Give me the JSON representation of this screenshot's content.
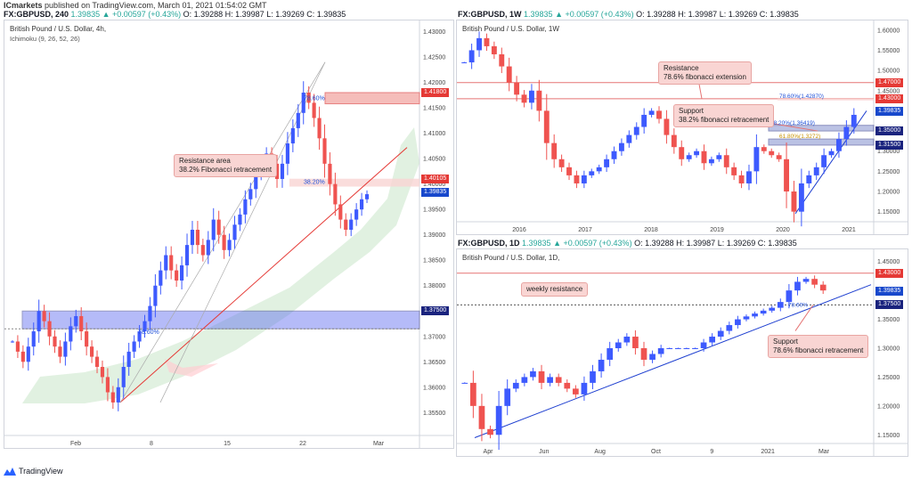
{
  "header": {
    "publisher": "ICmarkets",
    "published_text": "published on TradingView.com, March 01, 2021 01:54:02 GMT"
  },
  "panels": {
    "left": {
      "symbol": "FX:GBPUSD, 240",
      "price": "1.39835",
      "change": "▲ +0.00597 (+0.43%)",
      "o": "O: 1.39288",
      "h": "H: 1.39987",
      "l": "L: 1.39269",
      "c": "C: 1.39835",
      "title": "British Pound / U.S. Dollar, 4h,",
      "indicator": "Ichimoku (9, 26, 52, 26)",
      "annotation_line1": "Resistance area",
      "annotation_line2": "38.2% Fibonacci retracement",
      "fib_786": "78.60%",
      "fib_382": "38.20%",
      "fib_786_low": "78.60%",
      "tags": {
        "t1": "1.41800",
        "t2": "1.40105",
        "t3": "1.39835",
        "t4": "1.37500"
      }
    },
    "topright": {
      "symbol": "FX:GBPUSD, 1W",
      "price": "1.39835",
      "change": "▲ +0.00597 (+0.43%)",
      "o": "O: 1.39288",
      "h": "H: 1.39987",
      "l": "L: 1.39269",
      "c": "C: 1.39835",
      "title": "British Pound / U.S. Dollar, 1W",
      "ann_res_line1": "Resistance",
      "ann_res_line2": "78.6% fibonacci extension",
      "ann_sup_line1": "Support",
      "ann_sup_line2": "38.2% fibonacci retracement",
      "fib_786": "78.60%(1.42870)",
      "fib_382": "38.20%(1.36419)",
      "fib_618": "61.80%(1.3272)",
      "tags": {
        "t1": "1.47000",
        "t2": "1.43000",
        "t3": "1.39835",
        "t4": "1.35000",
        "t5": "1.31500"
      }
    },
    "bottomright": {
      "symbol": "FX:GBPUSD, 1D",
      "price": "1.39835",
      "change": "▲ +0.00597 (+0.43%)",
      "o": "O: 1.39288",
      "h": "H: 1.39987",
      "l": "L: 1.39269",
      "c": "C: 1.39835",
      "title": "British Pound / U.S. Dollar, 1D,",
      "ann_res": "weekly resistance",
      "ann_sup_line1": "Support",
      "ann_sup_line2": "78.6% fibonacci retracement",
      "fib_label": "78.60%",
      "tags": {
        "t1": "1.43000",
        "t2": "1.39835",
        "t3": "1.37500"
      }
    }
  },
  "chart_data": [
    {
      "type": "candlestick",
      "title": "British Pound / U.S. Dollar, 4h,",
      "x_ticks": [
        "Feb",
        "8",
        "15",
        "22",
        "Mar"
      ],
      "y_ticks": [
        1.43,
        1.425,
        1.42,
        1.415,
        1.41,
        1.405,
        1.4,
        1.395,
        1.39,
        1.385,
        1.38,
        1.375,
        1.37,
        1.365,
        1.36,
        1.355
      ],
      "y_tick_labels": [
        "1.43000",
        "1.42500",
        "1.42000",
        "1.41500",
        "1.41000",
        "1.40500",
        "1.40000",
        "1.39500",
        "1.39000",
        "1.38500",
        "1.38000",
        "1.37500",
        "1.37000",
        "1.36500",
        "1.36000",
        "1.35500"
      ],
      "ylim": [
        1.3505,
        1.4315
      ],
      "series": [
        {
          "values": [
            1.369,
            1.367,
            1.365,
            1.368,
            1.371,
            1.375,
            1.373,
            1.37,
            1.368,
            1.366,
            1.369,
            1.372,
            1.374,
            1.371,
            1.368,
            1.366,
            1.364,
            1.362,
            1.359,
            1.357,
            1.36,
            1.364,
            1.367,
            1.369,
            1.371,
            1.373,
            1.376,
            1.38,
            1.383,
            1.386,
            1.383,
            1.381,
            1.384,
            1.388,
            1.391,
            1.388,
            1.386,
            1.389,
            1.393,
            1.39,
            1.387,
            1.389,
            1.392,
            1.394,
            1.397,
            1.399,
            1.402,
            1.404,
            1.406,
            1.404,
            1.401,
            1.404,
            1.408,
            1.411,
            1.414,
            1.418,
            1.416,
            1.413,
            1.409,
            1.404,
            1.4,
            1.396,
            1.393,
            1.391,
            1.393,
            1.395,
            1.397,
            1.398
          ]
        }
      ],
      "levels": [
        1.418,
        1.40105,
        1.375
      ]
    },
    {
      "type": "candlestick",
      "title": "British Pound / U.S. Dollar, 1W",
      "x_ticks": [
        "2016",
        "2017",
        "2018",
        "2019",
        "2020",
        "2021"
      ],
      "y_ticks": [
        1.6,
        1.55,
        1.5,
        1.45,
        1.4,
        1.35,
        1.3,
        1.25,
        1.2,
        1.15
      ],
      "y_tick_labels": [
        "1.60000",
        "1.55000",
        "1.50000",
        "1.45000",
        "1.40000",
        "1.35000",
        "1.30000",
        "1.25000",
        "1.20000",
        "1.15000"
      ],
      "ylim": [
        1.125,
        1.615
      ],
      "series": [
        {
          "values": [
            1.52,
            1.55,
            1.58,
            1.56,
            1.54,
            1.51,
            1.47,
            1.44,
            1.42,
            1.45,
            1.4,
            1.32,
            1.28,
            1.26,
            1.24,
            1.22,
            1.24,
            1.25,
            1.26,
            1.28,
            1.3,
            1.32,
            1.34,
            1.36,
            1.39,
            1.4,
            1.38,
            1.34,
            1.31,
            1.28,
            1.29,
            1.3,
            1.27,
            1.28,
            1.29,
            1.26,
            1.24,
            1.22,
            1.25,
            1.31,
            1.3,
            1.29,
            1.28,
            1.2,
            1.15,
            1.22,
            1.24,
            1.26,
            1.29,
            1.3,
            1.33,
            1.36,
            1.39
          ]
        }
      ],
      "levels": [
        1.47,
        1.43,
        1.35,
        1.315
      ]
    },
    {
      "type": "candlestick",
      "title": "British Pound / U.S. Dollar, 1D,",
      "x_ticks": [
        "Apr",
        "Jun",
        "Aug",
        "Oct",
        "9",
        "2021",
        "Mar"
      ],
      "y_ticks": [
        1.45,
        1.4,
        1.35,
        1.3,
        1.25,
        1.2,
        1.15
      ],
      "y_tick_labels": [
        "1.45000",
        "1.40000",
        "1.35000",
        "1.30000",
        "1.25000",
        "1.20000",
        "1.15000"
      ],
      "ylim": [
        1.135,
        1.465
      ],
      "series": [
        {
          "values": [
            1.24,
            1.2,
            1.16,
            1.15,
            1.2,
            1.23,
            1.24,
            1.25,
            1.26,
            1.24,
            1.25,
            1.24,
            1.23,
            1.22,
            1.24,
            1.26,
            1.28,
            1.3,
            1.31,
            1.32,
            1.3,
            1.28,
            1.29,
            1.3,
            1.3,
            1.3,
            1.3,
            1.3,
            1.31,
            1.32,
            1.33,
            1.34,
            1.35,
            1.355,
            1.36,
            1.365,
            1.37,
            1.38,
            1.4,
            1.415,
            1.42,
            1.41,
            1.4
          ]
        }
      ],
      "levels": [
        1.43,
        1.375
      ]
    }
  ]
}
